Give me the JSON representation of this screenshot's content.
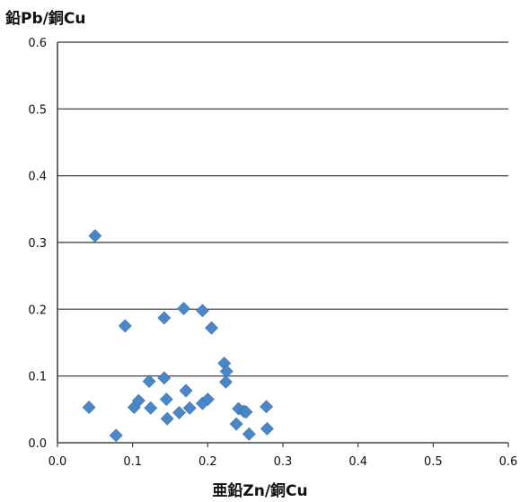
{
  "chart_data": {
    "type": "scatter",
    "ylabel": "鉛Pb/銅Cu",
    "xlabel": "亜鉛Zn/銅Cu",
    "xlim": [
      0.0,
      0.6
    ],
    "ylim": [
      0.0,
      0.6
    ],
    "x_ticks": [
      "0.0",
      "0.1",
      "0.2",
      "0.3",
      "0.4",
      "0.5",
      "0.6"
    ],
    "y_ticks": [
      "0.0",
      "0.1",
      "0.2",
      "0.3",
      "0.4",
      "0.5",
      "0.6"
    ],
    "grid": "horizontal",
    "marker": "diamond",
    "marker_color": "#4a86c8",
    "points": [
      {
        "x": 0.05,
        "y": 0.31
      },
      {
        "x": 0.09,
        "y": 0.175
      },
      {
        "x": 0.142,
        "y": 0.187
      },
      {
        "x": 0.168,
        "y": 0.201
      },
      {
        "x": 0.193,
        "y": 0.198
      },
      {
        "x": 0.205,
        "y": 0.172
      },
      {
        "x": 0.222,
        "y": 0.119
      },
      {
        "x": 0.225,
        "y": 0.107
      },
      {
        "x": 0.224,
        "y": 0.091
      },
      {
        "x": 0.042,
        "y": 0.053
      },
      {
        "x": 0.078,
        "y": 0.011
      },
      {
        "x": 0.102,
        "y": 0.053
      },
      {
        "x": 0.108,
        "y": 0.063
      },
      {
        "x": 0.122,
        "y": 0.092
      },
      {
        "x": 0.124,
        "y": 0.052
      },
      {
        "x": 0.142,
        "y": 0.097
      },
      {
        "x": 0.145,
        "y": 0.065
      },
      {
        "x": 0.146,
        "y": 0.036
      },
      {
        "x": 0.162,
        "y": 0.045
      },
      {
        "x": 0.171,
        "y": 0.078
      },
      {
        "x": 0.176,
        "y": 0.052
      },
      {
        "x": 0.193,
        "y": 0.059
      },
      {
        "x": 0.2,
        "y": 0.065
      },
      {
        "x": 0.238,
        "y": 0.028
      },
      {
        "x": 0.241,
        "y": 0.051
      },
      {
        "x": 0.248,
        "y": 0.047
      },
      {
        "x": 0.251,
        "y": 0.046
      },
      {
        "x": 0.255,
        "y": 0.013
      },
      {
        "x": 0.278,
        "y": 0.054
      },
      {
        "x": 0.279,
        "y": 0.021
      }
    ]
  }
}
